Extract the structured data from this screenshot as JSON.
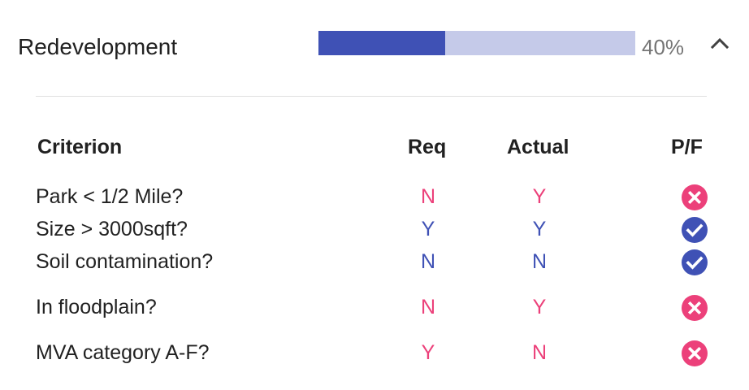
{
  "section": {
    "title": "Redevelopment",
    "progress_percent": 40,
    "progress_label": "40%",
    "collapse_icon": "chevron-up-icon"
  },
  "colors": {
    "progress_fill": "#3f51b5",
    "progress_track": "#c5cae9",
    "pass": "#3f51b5",
    "fail": "#ec407a"
  },
  "table": {
    "headers": {
      "criterion": "Criterion",
      "req": "Req",
      "actual": "Actual",
      "pf": "P/F"
    },
    "rows": [
      {
        "criterion": "Park < 1/2 Mile?",
        "req": "N",
        "actual": "Y",
        "result": "fail",
        "icon": "fail-x-icon"
      },
      {
        "criterion": "Size > 3000sqft?",
        "req": "Y",
        "actual": "Y",
        "result": "pass",
        "icon": "pass-check-icon"
      },
      {
        "criterion": "Soil contamination?",
        "req": "N",
        "actual": "N",
        "result": "pass",
        "icon": "pass-check-icon"
      },
      {
        "criterion": "In floodplain?",
        "req": "N",
        "actual": "Y",
        "result": "fail",
        "icon": "fail-x-icon"
      },
      {
        "criterion": "MVA category A-F?",
        "req": "Y",
        "actual": "N",
        "result": "fail",
        "icon": "fail-x-icon"
      }
    ]
  }
}
